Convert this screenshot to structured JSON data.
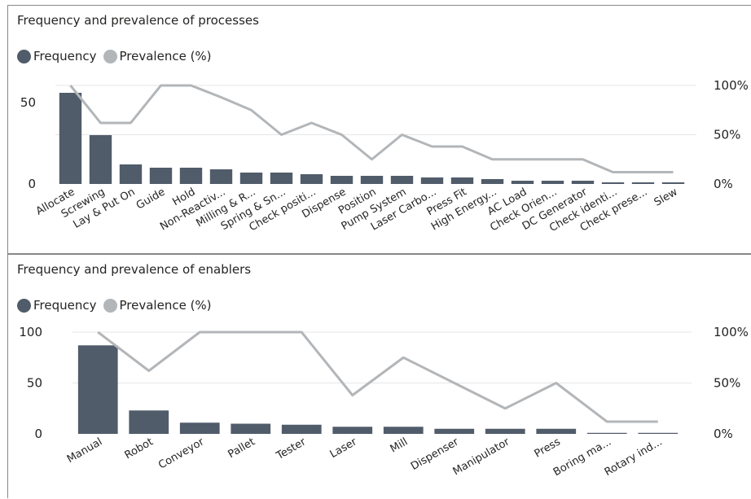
{
  "chart_data": [
    {
      "type": "bar",
      "title": "Frequency and prevalence of processes",
      "legend_placement": "top-left",
      "categories": [
        "Allocate",
        "Screwing",
        "Lay & Put On",
        "Guide",
        "Hold",
        "Non-Reactiv...",
        "Milling & R...",
        "Spring & Sn...",
        "Check positi...",
        "Dispense",
        "Position",
        "Pump System",
        "Laser Carbo...",
        "Press Fit",
        "High Energy...",
        "AC Load",
        "Check Orien...",
        "DC Generator",
        "Check identi...",
        "Check prese...",
        "Slew"
      ],
      "x_tick_labels": [
        "Allocate",
        "Screwing",
        "Lay & Put On",
        "Guide",
        "Hold",
        "Non-Reactiv...",
        "Milling & R...",
        "Spring & Sn...",
        "Check positi...",
        "Dispense",
        "Position",
        "Pump System",
        "Laser Carbo...",
        "Press Fit",
        "High Energy...",
        "AC Load",
        "Check Orien...",
        "DC Generator",
        "Check identi...",
        "Check prese...",
        "Slew"
      ],
      "series": [
        {
          "name": "Frequency",
          "type": "bar",
          "axis": "left",
          "color": "#515c6a",
          "values": [
            56,
            30,
            12,
            10,
            10,
            9,
            7,
            7,
            6,
            5,
            5,
            5,
            4,
            4,
            3,
            2,
            2,
            2,
            1,
            1,
            1
          ]
        },
        {
          "name": "Prevalence (%)",
          "type": "line",
          "axis": "right",
          "color": "#b3b6b9",
          "values": [
            100,
            62,
            62,
            100,
            100,
            88,
            75,
            50,
            62,
            50,
            25,
            50,
            38,
            38,
            25,
            25,
            25,
            25,
            12,
            12,
            12
          ]
        }
      ],
      "y_left": {
        "ylim": [
          0,
          62
        ],
        "ticks": [
          0,
          50
        ],
        "tick_labels": [
          "0",
          "50"
        ]
      },
      "y_right": {
        "ylim": [
          0,
          110
        ],
        "ticks": [
          0,
          50,
          100
        ],
        "tick_labels": [
          "0%",
          "50%",
          "100%"
        ]
      },
      "grid": true
    },
    {
      "type": "bar",
      "title": "Frequency and prevalence of enablers",
      "legend_placement": "top-left",
      "categories": [
        "Manual",
        "Robot",
        "Conveyor",
        "Pallet",
        "Tester",
        "Laser",
        "Mill",
        "Dispenser",
        "Manipulator",
        "Press",
        "Boring ma...",
        "Rotary ind..."
      ],
      "x_tick_labels": [
        "Manual",
        "Robot",
        "Conveyor",
        "Pallet",
        "Tester",
        "Laser",
        "Mill",
        "Dispenser",
        "Manipulator",
        "Press",
        "Boring ma...",
        "Rotary ind..."
      ],
      "series": [
        {
          "name": "Frequency",
          "type": "bar",
          "axis": "left",
          "color": "#515c6a",
          "values": [
            87,
            23,
            11,
            10,
            9,
            7,
            7,
            5,
            5,
            5,
            1,
            1
          ]
        },
        {
          "name": "Prevalence (%)",
          "type": "line",
          "axis": "right",
          "color": "#b3b6b9",
          "values": [
            100,
            62,
            100,
            100,
            100,
            38,
            75,
            50,
            25,
            50,
            12,
            12
          ]
        }
      ],
      "y_left": {
        "ylim": [
          0,
          100
        ],
        "ticks": [
          0,
          50,
          100
        ],
        "tick_labels": [
          "0",
          "50",
          "100"
        ]
      },
      "y_right": {
        "ylim": [
          0,
          100
        ],
        "ticks": [
          0,
          50,
          100
        ],
        "tick_labels": [
          "0%",
          "50%",
          "100%"
        ]
      },
      "grid": true
    }
  ]
}
